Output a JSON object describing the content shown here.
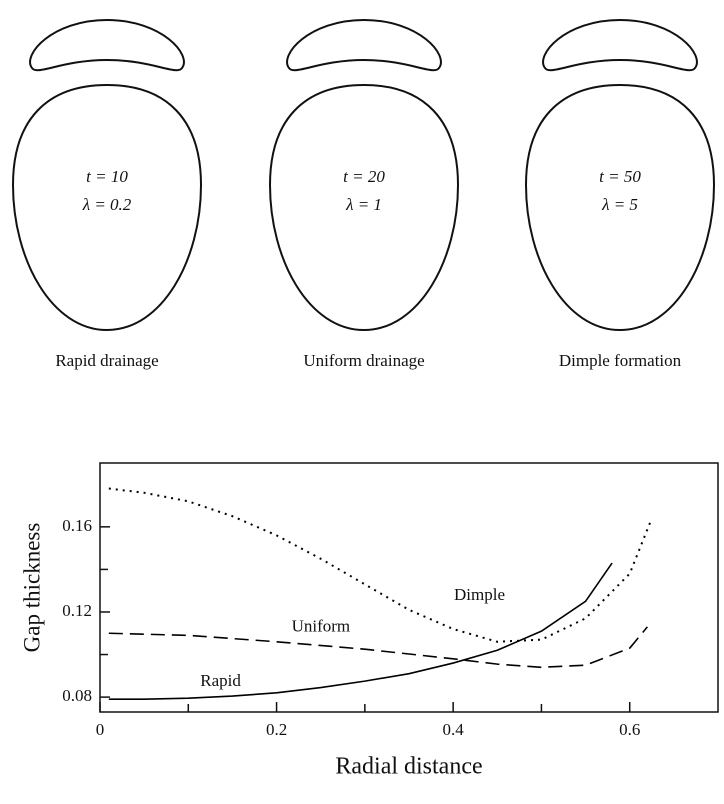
{
  "diagrams": [
    {
      "time": "t = 10",
      "lambda": "λ = 0.2",
      "caption": "Rapid drainage"
    },
    {
      "time": "t = 20",
      "lambda": "λ = 1",
      "caption": "Uniform drainage"
    },
    {
      "time": "t = 50",
      "lambda": "λ = 5",
      "caption": "Dimple formation"
    }
  ],
  "chart_data": {
    "type": "line",
    "xlabel": "Radial distance",
    "ylabel": "Gap thickness",
    "xlim": [
      0,
      0.7
    ],
    "ylim": [
      0.073,
      0.19
    ],
    "xticks": [
      0,
      0.2,
      0.4,
      0.6
    ],
    "yticks": [
      0.08,
      0.12,
      0.16
    ],
    "xminor": [
      0.1,
      0.3,
      0.5
    ],
    "yminor": [
      0.1,
      0.14
    ],
    "series": [
      {
        "name": "Rapid",
        "color": "#000000",
        "linestyle": "solid",
        "x": [
          0.01,
          0.05,
          0.1,
          0.15,
          0.2,
          0.25,
          0.3,
          0.35,
          0.4,
          0.45,
          0.5,
          0.55,
          0.58
        ],
        "values": [
          0.079,
          0.079,
          0.0795,
          0.0805,
          0.082,
          0.0845,
          0.0875,
          0.091,
          0.096,
          0.102,
          0.111,
          0.125,
          0.143
        ]
      },
      {
        "name": "Uniform",
        "color": "#000000",
        "linestyle": "dashed",
        "x": [
          0.01,
          0.1,
          0.2,
          0.3,
          0.4,
          0.45,
          0.5,
          0.55,
          0.6,
          0.62
        ],
        "values": [
          0.11,
          0.109,
          0.106,
          0.1025,
          0.098,
          0.0955,
          0.094,
          0.095,
          0.103,
          0.113
        ]
      },
      {
        "name": "Dimple",
        "color": "#000000",
        "linestyle": "dotted",
        "x": [
          0.01,
          0.05,
          0.1,
          0.15,
          0.2,
          0.25,
          0.3,
          0.35,
          0.4,
          0.45,
          0.5,
          0.55,
          0.6,
          0.625
        ],
        "values": [
          0.178,
          0.176,
          0.172,
          0.165,
          0.156,
          0.145,
          0.133,
          0.121,
          0.112,
          0.106,
          0.107,
          0.117,
          0.138,
          0.164
        ]
      }
    ]
  }
}
